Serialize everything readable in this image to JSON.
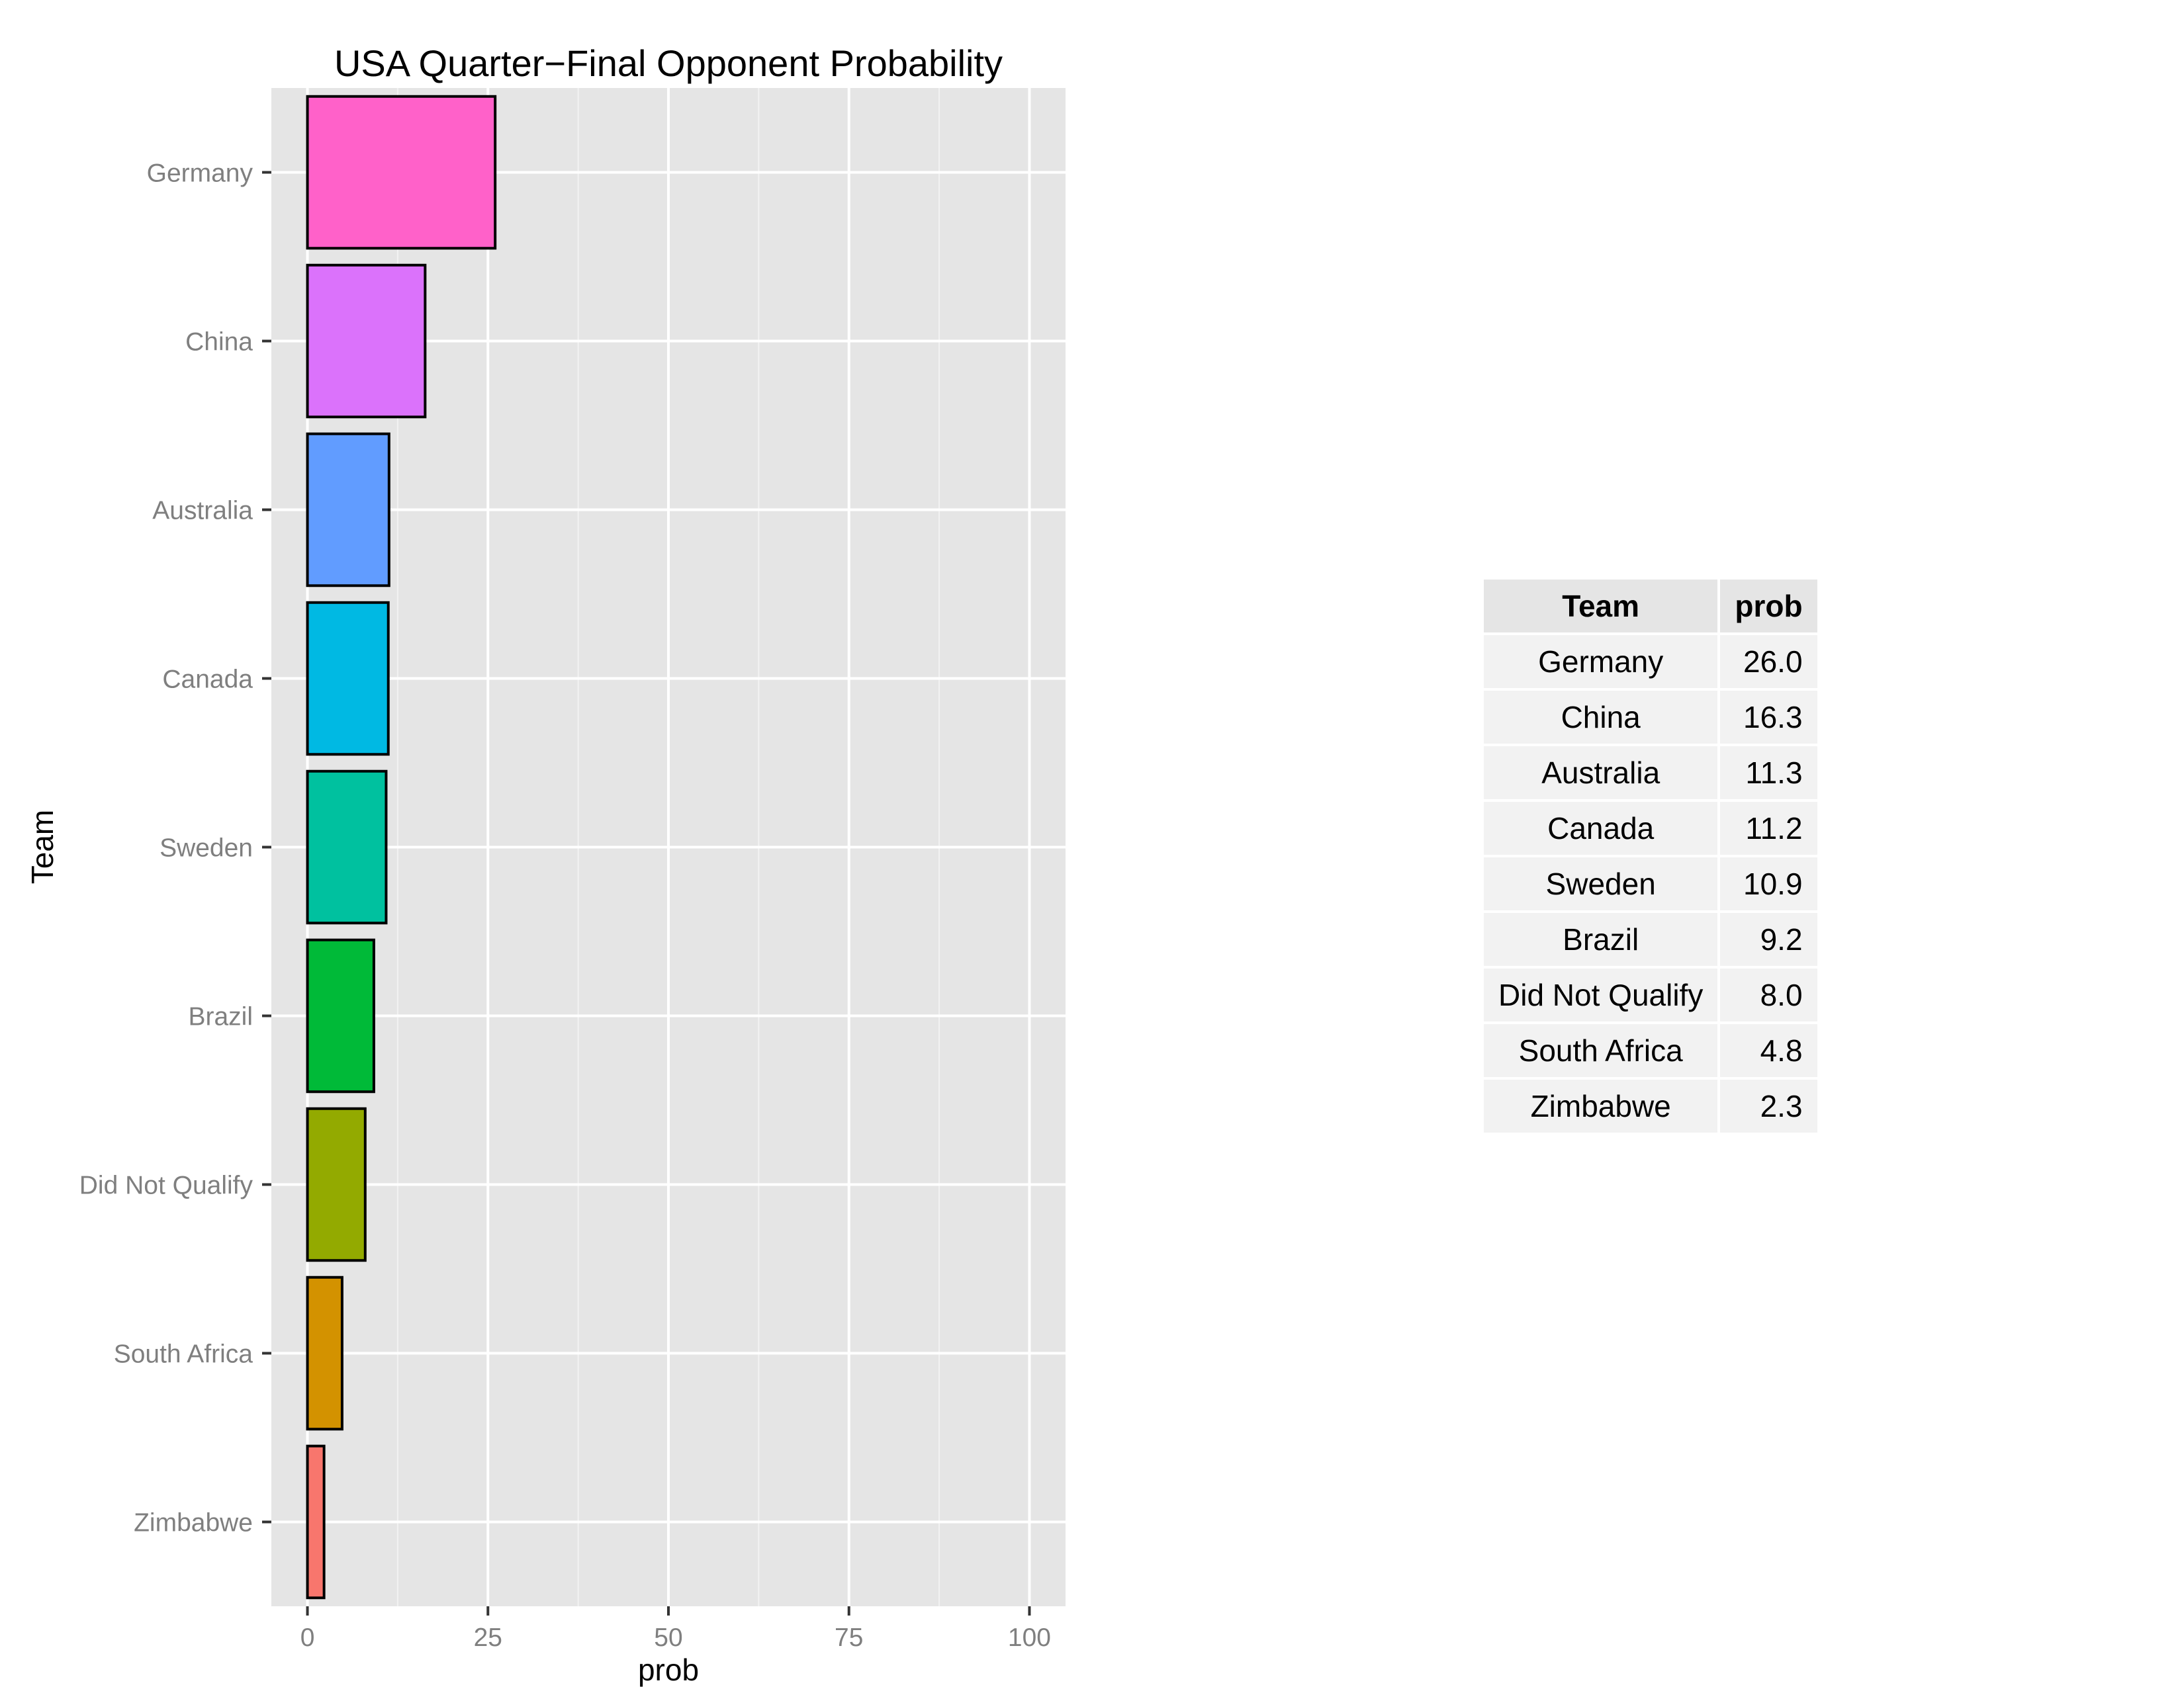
{
  "chart_data": {
    "type": "bar",
    "orientation": "horizontal",
    "title": "USA Quarter−Final Opponent Probability",
    "xlabel": "prob",
    "ylabel": "Team",
    "xlim": [
      -5,
      105
    ],
    "xticks": [
      0,
      25,
      50,
      75,
      100
    ],
    "xtick_labels": [
      "0",
      "25",
      "50",
      "75",
      "100"
    ],
    "categories": [
      "Germany",
      "China",
      "Australia",
      "Canada",
      "Sweden",
      "Brazil",
      "Did Not Qualify",
      "South Africa",
      "Zimbabwe"
    ],
    "values": [
      26.0,
      16.3,
      11.3,
      11.2,
      10.9,
      9.2,
      8.0,
      4.8,
      2.3
    ],
    "colors": [
      "#FF61C9",
      "#DB72FB",
      "#619CFF",
      "#00B9E3",
      "#00C19F",
      "#00BA38",
      "#93AA00",
      "#D39200",
      "#F8766D"
    ],
    "grid": true,
    "legend": "none"
  },
  "table": {
    "headers": [
      "Team",
      "prob"
    ],
    "rows": [
      [
        "Germany",
        "26.0"
      ],
      [
        "China",
        "16.3"
      ],
      [
        "Australia",
        "11.3"
      ],
      [
        "Canada",
        "11.2"
      ],
      [
        "Sweden",
        "10.9"
      ],
      [
        "Brazil",
        "9.2"
      ],
      [
        "Did Not Qualify",
        "8.0"
      ],
      [
        "South Africa",
        "4.8"
      ],
      [
        "Zimbabwe",
        "2.3"
      ]
    ]
  }
}
